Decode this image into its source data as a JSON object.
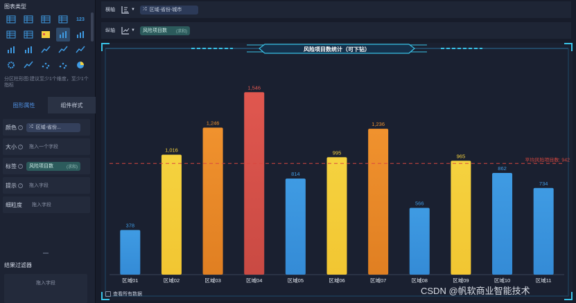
{
  "left_panel": {
    "chart_type_title": "图表类型",
    "chart_type_icons": [
      "table-icon",
      "cross-table-icon",
      "grid-table-icon",
      "dashboard-icon",
      "kpi-icon",
      "row-table-icon",
      "detail-table-icon",
      "map-icon",
      "grouped-column-icon",
      "grouped-bar-icon",
      "column-chart-icon",
      "stacked-column-icon",
      "line-column-icon",
      "area-stack-icon",
      "funnel-line-icon",
      "gear-chart-icon",
      "line-chart-icon",
      "scatter-icon",
      "bubble-icon",
      "pie-icon"
    ],
    "selected_chart_type_index": 8,
    "kpi_icon_text": "123",
    "hint": "分区柱形图:建议至少1个维度，至少1个指标",
    "tabs": {
      "properties": "图形属性",
      "style": "组件样式"
    },
    "props": {
      "color": {
        "label": "颜色",
        "pill": "区域-省份..."
      },
      "size": {
        "label": "大小",
        "placeholder": "拖入一个字段"
      },
      "tag": {
        "label": "标签",
        "pill": "风险项目数",
        "pill_sub": "(求和)"
      },
      "tooltip": {
        "label": "提示",
        "placeholder": "拖入字段"
      },
      "granularity": {
        "label": "细粒度",
        "placeholder": "拖入字段"
      }
    },
    "filter_title": "结果过滤器",
    "filter_placeholder": "拖入字段"
  },
  "axes": {
    "x": {
      "label": "横轴",
      "pill": "区域-省份-城市"
    },
    "y": {
      "label": "纵轴",
      "pill": "风险项目数",
      "pill_sub": "(求和)"
    }
  },
  "chart": {
    "show_all_label": "查看所有数据",
    "avg_line_label": "平均风险项目数: 942",
    "colors": {
      "high": "#e0574f",
      "mid": "#f0922e",
      "normal": "#f5d23f",
      "low": "#3f9be3"
    }
  },
  "chart_data": {
    "type": "bar",
    "title": "风险项目数统计（可下钻）",
    "categories": [
      "区域01",
      "区域02",
      "区域03",
      "区域04",
      "区域05",
      "区域06",
      "区域07",
      "区域08",
      "区域09",
      "区域10",
      "区域11"
    ],
    "values": [
      378,
      1016,
      1246,
      1546,
      814,
      995,
      1236,
      566,
      965,
      862,
      734
    ],
    "value_labels": [
      "378",
      "1,016",
      "1,246",
      "1,546",
      "814",
      "995",
      "1,236",
      "566",
      "965",
      "862",
      "734"
    ],
    "ylim": [
      0,
      1700
    ],
    "average": 942,
    "grid": false,
    "xlabel": "",
    "ylabel": ""
  },
  "watermark": "CSDN @帆软商业智能技术"
}
